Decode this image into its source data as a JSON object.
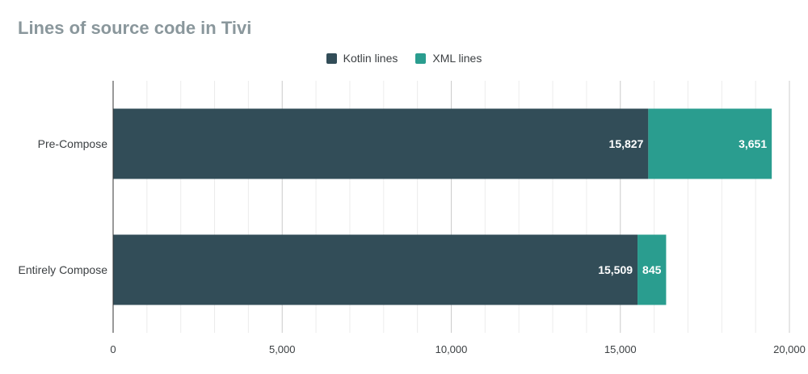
{
  "chart_data": {
    "type": "bar",
    "orientation": "horizontal",
    "stacked": true,
    "title": "Lines of source code in Tivi",
    "categories": [
      "Pre-Compose",
      "Entirely Compose"
    ],
    "series": [
      {
        "name": "Kotlin lines",
        "values": [
          15827,
          15509
        ],
        "labels": [
          "15,827",
          "15,509"
        ],
        "color": "#324d58"
      },
      {
        "name": "XML lines",
        "values": [
          3651,
          845
        ],
        "labels": [
          "3,651",
          "845"
        ],
        "color": "#2a9d8f"
      }
    ],
    "xlim": [
      0,
      20000
    ],
    "ticks": [
      0,
      5000,
      10000,
      15000,
      20000
    ],
    "tick_labels": [
      "0",
      "5,000",
      "10,000",
      "15,000",
      "20,000"
    ],
    "legend_position": "top",
    "grid": true
  }
}
